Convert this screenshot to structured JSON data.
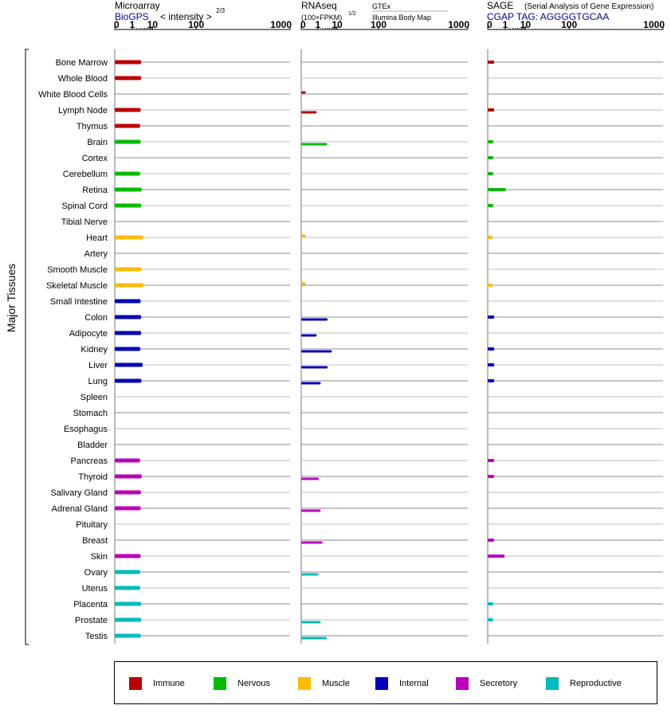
{
  "colors": {
    "Immune": "#bb0000",
    "Nervous": "#00bb00",
    "Muscle": "#ffbb00",
    "Internal": "#0000bb",
    "Secretory": "#bb00bb",
    "Reproductive": "#00bbbb"
  },
  "chart_data": {
    "type": "bar",
    "orientation": "horizontal",
    "ylabel": "Major Tissues",
    "categories": [
      "Bone Marrow",
      "Whole Blood",
      "White Blood Cells",
      "Lymph Node",
      "Thymus",
      "Brain",
      "Cortex",
      "Cerebellum",
      "Retina",
      "Spinal Cord",
      "Tibial Nerve",
      "Heart",
      "Artery",
      "Smooth Muscle",
      "Skeletal Muscle",
      "Small Intestine",
      "Colon",
      "Adipocyte",
      "Kidney",
      "Liver",
      "Lung",
      "Spleen",
      "Stomach",
      "Esophagus",
      "Bladder",
      "Pancreas",
      "Thyroid",
      "Salivary Gland",
      "Adrenal Gland",
      "Pituitary",
      "Breast",
      "Skin",
      "Ovary",
      "Uterus",
      "Placenta",
      "Prostate",
      "Testis"
    ],
    "groups": [
      "Immune",
      "Immune",
      "Immune",
      "Immune",
      "Immune",
      "Nervous",
      "Nervous",
      "Nervous",
      "Nervous",
      "Nervous",
      "Nervous",
      "Muscle",
      "Muscle",
      "Muscle",
      "Muscle",
      "Internal",
      "Internal",
      "Internal",
      "Internal",
      "Internal",
      "Internal",
      "Internal",
      "Internal",
      "Internal",
      "Internal",
      "Secretory",
      "Secretory",
      "Secretory",
      "Secretory",
      "Secretory",
      "Secretory",
      "Secretory",
      "Reproductive",
      "Reproductive",
      "Reproductive",
      "Reproductive",
      "Reproductive"
    ],
    "panels": [
      {
        "name": "microarray",
        "title": "Microarray",
        "source": "BioGPS",
        "unit": "< intensity >",
        "unit_exp": "2/3",
        "ticks": [
          "0",
          "1",
          "10",
          "100",
          "1000"
        ],
        "xlim": [
          0,
          1000
        ],
        "values": [
          3.4,
          3.4,
          null,
          3.2,
          3.0,
          3.2,
          null,
          3.0,
          3.6,
          3.4,
          null,
          4.2,
          null,
          3.6,
          4.4,
          3.2,
          3.4,
          3.4,
          3.1,
          4.0,
          3.5,
          null,
          null,
          null,
          null,
          3.0,
          3.6,
          3.3,
          3.2,
          null,
          null,
          3.2,
          3.0,
          3.0,
          3.4,
          3.4,
          3.2
        ]
      },
      {
        "name": "rnaseq",
        "title": "RNAseq",
        "unit": "(100×FPKM)",
        "unit_exp": "1/2",
        "source": "GTEx",
        "source2": "Illumina Body Map",
        "ticks": [
          "0",
          "1",
          "10",
          "100",
          "1000"
        ],
        "xlim": [
          0,
          1000
        ],
        "values_gtex": [
          null,
          null,
          0.02,
          null,
          null,
          null,
          null,
          null,
          null,
          null,
          null,
          0.02,
          null,
          null,
          0.02,
          null,
          null,
          null,
          null,
          null,
          null,
          null,
          null,
          null,
          null,
          null,
          null,
          null,
          null,
          null,
          null,
          null,
          null,
          null,
          null,
          null,
          null
        ],
        "values_bodymap": [
          null,
          null,
          null,
          0.8,
          null,
          3.8,
          null,
          null,
          null,
          null,
          null,
          null,
          null,
          null,
          null,
          null,
          4.0,
          0.8,
          6.2,
          4.0,
          1.6,
          null,
          null,
          null,
          null,
          null,
          1.2,
          null,
          1.6,
          null,
          2.1,
          null,
          1.1,
          null,
          null,
          1.6,
          3.6
        ]
      },
      {
        "name": "sage",
        "title": "SAGE",
        "subtitle": "(Serial Analysis of Gene Expression)",
        "source": "CGAP TAG: AGGGGTGCAA",
        "ticks": [
          "0",
          "1",
          "10",
          "100",
          "1000"
        ],
        "xlim": [
          0,
          1000
        ],
        "values": [
          0.05,
          null,
          null,
          0.05,
          null,
          0.03,
          0.03,
          0.03,
          1.1,
          0.03,
          null,
          0.02,
          null,
          null,
          0.02,
          null,
          0.05,
          null,
          0.05,
          0.05,
          0.05,
          null,
          null,
          null,
          null,
          0.05,
          0.05,
          null,
          null,
          null,
          0.05,
          0.9,
          null,
          null,
          0.03,
          0.03,
          null
        ]
      }
    ],
    "legend": [
      "Immune",
      "Nervous",
      "Muscle",
      "Internal",
      "Secretory",
      "Reproductive"
    ],
    "legend_position": "bottom"
  }
}
